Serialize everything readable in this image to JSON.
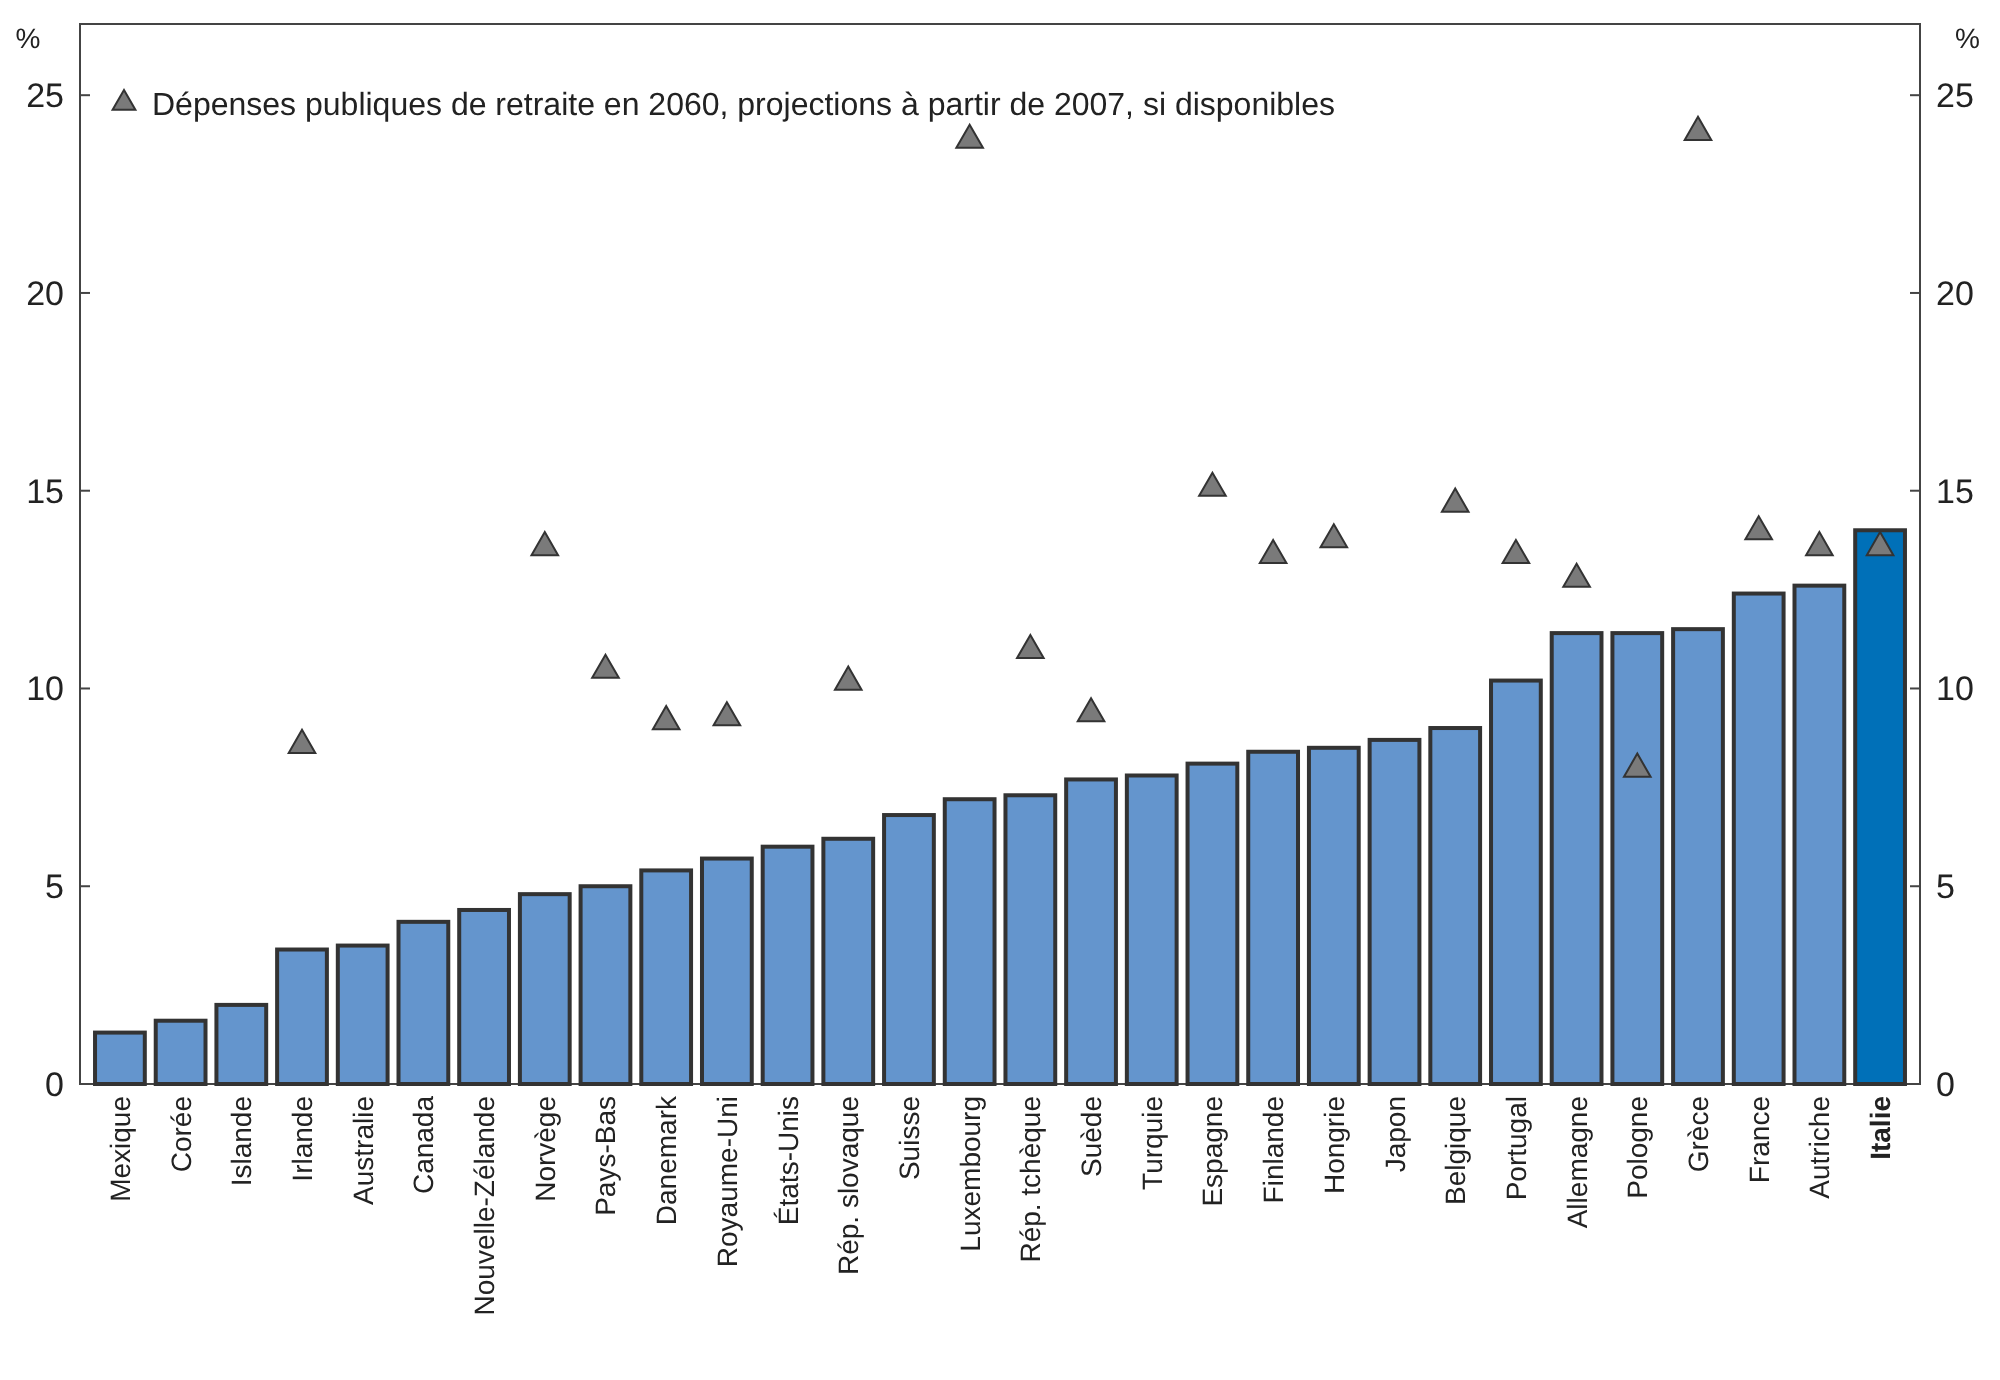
{
  "chart_data": {
    "type": "bar",
    "ylabel": "%",
    "y2label": "%",
    "ylim": [
      0,
      26.8
    ],
    "yticks": [
      0,
      5,
      10,
      15,
      20,
      25
    ],
    "y2lim": [
      0,
      26.8
    ],
    "y2ticks": [
      0,
      5,
      10,
      15,
      20,
      25
    ],
    "grid": false,
    "legend": "top left",
    "marker": "triangle",
    "categories": [
      "Mexique",
      "Corée",
      "Islande",
      "Irlande",
      "Australie",
      "Canada",
      "Nouvelle-Zélande",
      "Norvège",
      "Pays-Bas",
      "Danemark",
      "Royaume-Uni",
      "États-Unis",
      "Rép. slovaque",
      "Suisse",
      "Luxembourg",
      "Rép. tchèque",
      "Suède",
      "Turquie",
      "Espagne",
      "Finlande",
      "Hongrie",
      "Japon",
      "Belgique",
      "Portugal",
      "Allemagne",
      "Pologne",
      "Grèce",
      "France",
      "Autriche",
      "Italie"
    ],
    "series": [
      {
        "colors": [
          "#6495cd",
          "#6495cd",
          "#6495cd",
          "#6495cd",
          "#6495cd",
          "#6495cd",
          "#6495cd",
          "#6495cd",
          "#6495cd",
          "#6495cd",
          "#6495cd",
          "#6495cd",
          "#6495cd",
          "#6495cd",
          "#6495cd",
          "#6495cd",
          "#6495cd",
          "#6495cd",
          "#6495cd",
          "#6495cd",
          "#6495cd",
          "#6495cd",
          "#6495cd",
          "#6495cd",
          "#6495cd",
          "#6495cd",
          "#6495cd",
          "#6495cd",
          "#6495cd",
          "#0070b8"
        ],
        "values": [
          1.3,
          1.6,
          2.0,
          3.4,
          3.5,
          4.1,
          4.4,
          4.8,
          5.0,
          5.4,
          5.7,
          6.0,
          6.2,
          6.8,
          7.2,
          7.3,
          7.7,
          7.8,
          8.1,
          8.4,
          8.5,
          8.7,
          9.0,
          10.2,
          11.4,
          11.4,
          11.5,
          12.4,
          12.6,
          14.0
        ]
      },
      {
        "type": "scatter",
        "name": "Dépenses publiques de retraite en 2060, projections à partir de 2007, si disponibles",
        "color": "#7a7a7a",
        "values": [
          null,
          null,
          null,
          8.6,
          null,
          null,
          null,
          13.6,
          10.5,
          9.2,
          9.3,
          null,
          10.2,
          null,
          23.9,
          11.0,
          9.4,
          null,
          15.1,
          13.4,
          13.8,
          null,
          14.7,
          13.4,
          12.8,
          8.0,
          24.1,
          14.0,
          13.6,
          13.6
        ]
      }
    ]
  }
}
